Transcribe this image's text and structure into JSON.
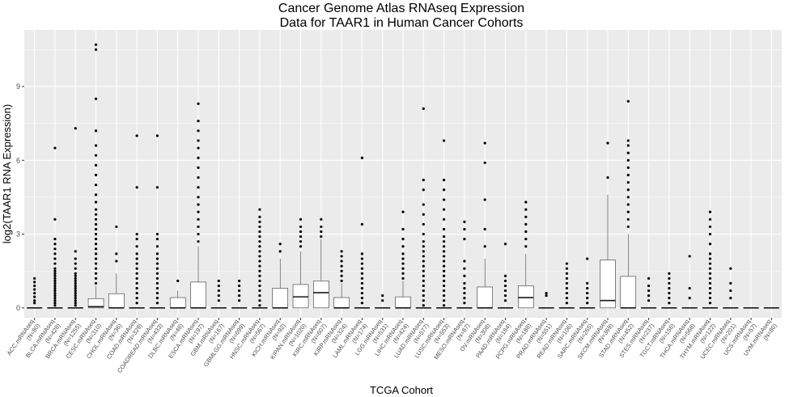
{
  "chart_data": {
    "type": "boxplot",
    "title_line1": "Cancer Genome Atlas RNAseq Expression",
    "title_line2": "Data for TAAR1 in Human Cancer Cohorts",
    "xlabel": "TCGA Cohort",
    "ylabel": "log2(TAAR1 RNA Expression)",
    "ylim": [
      -0.4,
      11.3
    ],
    "yticks": [
      0,
      3,
      6,
      9
    ],
    "grid": true,
    "categories": [
      {
        "name": "ACC.mRNAseq",
        "n": "(N=80)"
      },
      {
        "name": "BLCA.mRNAseq",
        "n": "(N=428)"
      },
      {
        "name": "BRCA.mRNAseq",
        "n": "(N=1255)"
      },
      {
        "name": "CESC.mRNAseq",
        "n": "(N=310)"
      },
      {
        "name": "CHOL.mRNAseq",
        "n": "(N=36)"
      },
      {
        "name": "COAD.mRNAseq",
        "n": "(N=329)"
      },
      {
        "name": "COADREAD.mRNAseq",
        "n": "(N=433)"
      },
      {
        "name": "DLBC.mRNAseq",
        "n": "(N=48)"
      },
      {
        "name": "ESCA.mRNAseq",
        "n": "(N=197)"
      },
      {
        "name": "GBM.mRNAseq",
        "n": "(N=167)"
      },
      {
        "name": "GBMLGG.mRNAseq",
        "n": "(N=699)"
      },
      {
        "name": "HNSC.mRNAseq",
        "n": "(N=567)"
      },
      {
        "name": "KICH.mRNAseq",
        "n": "(N=92)"
      },
      {
        "name": "KIPAN.mRNAseq",
        "n": "(N=1020)"
      },
      {
        "name": "KIRC.mRNAseq",
        "n": "(N=607)"
      },
      {
        "name": "KIRP.mRNAseq",
        "n": "(N=324)"
      },
      {
        "name": "LAML.mRNAseq",
        "n": "(N=174)"
      },
      {
        "name": "LGG.mRNAseq",
        "n": "(N=531)"
      },
      {
        "name": "LIHC.mRNAseq",
        "n": "(N=424)"
      },
      {
        "name": "LUAD.mRNAseq",
        "n": "(N=577)"
      },
      {
        "name": "LUSC.mRNAseq",
        "n": "(N=553)"
      },
      {
        "name": "MESO.mRNAseq",
        "n": "(N=87)"
      },
      {
        "name": "OV.mRNAseq",
        "n": "(N=308)"
      },
      {
        "name": "PAAD.mRNAseq",
        "n": "(N=184)"
      },
      {
        "name": "PCPG.mRNAseq",
        "n": "(N=188)"
      },
      {
        "name": "PRAD.mRNAseq",
        "n": "(N=551)"
      },
      {
        "name": "READ.mRNAseq",
        "n": "(N=106)"
      },
      {
        "name": "SARC.mRNAseq",
        "n": "(N=265)"
      },
      {
        "name": "SKCM.mRNAseq",
        "n": "(N=369)"
      },
      {
        "name": "STAD.mRNAseq",
        "n": "(N=452)"
      },
      {
        "name": "STES.mRNAseq",
        "n": "(N=237)"
      },
      {
        "name": "TGCT.mRNAseq",
        "n": "(N=156)"
      },
      {
        "name": "THCA.mRNAseq",
        "n": "(N=568)"
      },
      {
        "name": "THYM.mRNAseq",
        "n": "(N=122)"
      },
      {
        "name": "UCEC.mRNAseq",
        "n": "(N=201)"
      },
      {
        "name": "UCS.mRNAseq",
        "n": "(N=57)"
      },
      {
        "name": "UVM.mRNAseq",
        "n": "(N=80)"
      }
    ],
    "boxes": [
      {
        "q1": 0,
        "median": 0,
        "q3": 0,
        "whisker_low": 0,
        "whisker_high": 0,
        "outliers": [
          0.2,
          0.3,
          0.45,
          0.6,
          0.75,
          0.9,
          1.05,
          1.2
        ]
      },
      {
        "q1": 0,
        "median": 0,
        "q3": 0,
        "whisker_low": 0,
        "whisker_high": 0,
        "outliers": [
          0.1,
          0.2,
          0.3,
          0.4,
          0.5,
          0.6,
          0.7,
          0.8,
          0.9,
          1.0,
          1.1,
          1.2,
          1.3,
          1.4,
          1.5,
          1.6,
          1.8,
          2.0,
          2.2,
          2.4,
          2.6,
          2.8,
          3.6,
          6.5
        ]
      },
      {
        "q1": 0,
        "median": 0,
        "q3": 0,
        "whisker_low": 0,
        "whisker_high": 0,
        "outliers": [
          0.1,
          0.2,
          0.3,
          0.4,
          0.5,
          0.6,
          0.7,
          0.8,
          0.9,
          1.0,
          1.1,
          1.2,
          1.3,
          1.4,
          1.6,
          1.8,
          2.0,
          2.3,
          7.3
        ]
      },
      {
        "q1": 0,
        "median": 0.05,
        "q3": 0.38,
        "whisker_low": 0,
        "whisker_high": 0.9,
        "outliers": [
          1.0,
          1.2,
          1.4,
          1.6,
          1.8,
          2.0,
          2.2,
          2.4,
          2.6,
          2.8,
          3.0,
          3.2,
          3.4,
          3.6,
          3.8,
          4.0,
          4.3,
          4.6,
          5.0,
          5.4,
          5.8,
          6.2,
          6.6,
          7.2,
          8.5,
          10.5,
          10.7
        ]
      },
      {
        "q1": 0,
        "median": 0,
        "q3": 0.58,
        "whisker_low": 0,
        "whisker_high": 1.4,
        "outliers": [
          1.9,
          2.2,
          3.3
        ]
      },
      {
        "q1": 0,
        "median": 0,
        "q3": 0,
        "whisker_low": 0,
        "whisker_high": 0,
        "outliers": [
          0.2,
          0.4,
          0.6,
          0.8,
          1.0,
          1.2,
          1.4,
          1.6,
          1.8,
          2.0,
          2.2,
          2.5,
          2.8,
          3.0,
          4.9,
          7.0
        ]
      },
      {
        "q1": 0,
        "median": 0,
        "q3": 0,
        "whisker_low": 0,
        "whisker_high": 0,
        "outliers": [
          0.2,
          0.4,
          0.6,
          0.8,
          1.0,
          1.2,
          1.4,
          1.6,
          1.8,
          2.0,
          2.2,
          2.5,
          2.8,
          3.0,
          4.9,
          7.0
        ]
      },
      {
        "q1": 0,
        "median": 0,
        "q3": 0.42,
        "whisker_low": 0,
        "whisker_high": 0.7,
        "outliers": [
          1.1
        ]
      },
      {
        "q1": 0,
        "median": 0,
        "q3": 1.05,
        "whisker_low": 0,
        "whisker_high": 2.5,
        "outliers": [
          2.7,
          3.0,
          3.3,
          3.6,
          3.9,
          4.2,
          4.5,
          4.9,
          5.3,
          5.7,
          6.1,
          6.5,
          6.8,
          7.2,
          7.6,
          8.3
        ]
      },
      {
        "q1": 0,
        "median": 0,
        "q3": 0,
        "whisker_low": 0,
        "whisker_high": 0,
        "outliers": [
          0.3,
          0.5,
          0.7,
          0.9,
          1.1
        ]
      },
      {
        "q1": 0,
        "median": 0,
        "q3": 0,
        "whisker_low": 0,
        "whisker_high": 0,
        "outliers": [
          0.3,
          0.5,
          0.7,
          0.9,
          1.1
        ]
      },
      {
        "q1": 0,
        "median": 0,
        "q3": 0,
        "whisker_low": 0,
        "whisker_high": 0,
        "outliers": [
          0.1,
          0.3,
          0.5,
          0.7,
          0.9,
          1.1,
          1.3,
          1.5,
          1.7,
          1.9,
          2.1,
          2.3,
          2.5,
          2.7,
          2.9,
          3.1,
          3.3,
          3.5,
          3.7,
          4.0
        ]
      },
      {
        "q1": 0,
        "median": 0,
        "q3": 0.8,
        "whisker_low": 0,
        "whisker_high": 2.0,
        "outliers": [
          2.3,
          2.6
        ]
      },
      {
        "q1": 0,
        "median": 0.45,
        "q3": 0.95,
        "whisker_low": 0,
        "whisker_high": 2.3,
        "outliers": [
          2.5,
          2.7,
          2.9,
          3.1,
          3.3,
          3.6
        ]
      },
      {
        "q1": 0,
        "median": 0.62,
        "q3": 1.1,
        "whisker_low": 0,
        "whisker_high": 2.8,
        "outliers": [
          2.9,
          3.1,
          3.3,
          3.6
        ]
      },
      {
        "q1": 0,
        "median": 0,
        "q3": 0.42,
        "whisker_low": 0,
        "whisker_high": 1.0,
        "outliers": [
          1.1,
          1.3,
          1.5,
          1.7,
          1.9,
          2.1,
          2.3
        ]
      },
      {
        "q1": 0,
        "median": 0,
        "q3": 0,
        "whisker_low": 0,
        "whisker_high": 0,
        "outliers": [
          0.2,
          0.4,
          0.6,
          0.8,
          1.0,
          1.2,
          1.4,
          1.6,
          1.8,
          2.0,
          2.2,
          3.4,
          6.1
        ]
      },
      {
        "q1": 0,
        "median": 0,
        "q3": 0,
        "whisker_low": 0,
        "whisker_high": 0,
        "outliers": [
          0.3,
          0.5
        ]
      },
      {
        "q1": 0,
        "median": 0,
        "q3": 0.45,
        "whisker_low": 0,
        "whisker_high": 1.1,
        "outliers": [
          1.2,
          1.4,
          1.6,
          1.8,
          2.0,
          2.2,
          2.5,
          2.8,
          3.2,
          3.9
        ]
      },
      {
        "q1": 0,
        "median": 0,
        "q3": 0,
        "whisker_low": 0,
        "whisker_high": 0,
        "outliers": [
          0.1,
          0.3,
          0.5,
          0.7,
          0.9,
          1.1,
          1.3,
          1.5,
          1.7,
          1.9,
          2.1,
          2.3,
          2.5,
          2.7,
          3.0,
          3.4,
          3.8,
          4.2,
          4.8,
          5.2,
          8.1
        ]
      },
      {
        "q1": 0,
        "median": 0,
        "q3": 0,
        "whisker_low": 0,
        "whisker_high": 0,
        "outliers": [
          0.1,
          0.3,
          0.5,
          0.7,
          0.9,
          1.1,
          1.3,
          1.5,
          1.7,
          1.9,
          2.1,
          2.3,
          2.5,
          2.7,
          2.9,
          3.2,
          3.6,
          4.0,
          4.4,
          4.8,
          5.2,
          6.8
        ]
      },
      {
        "q1": 0,
        "median": 0,
        "q3": 0,
        "whisker_low": 0,
        "whisker_high": 0,
        "outliers": [
          0.2,
          0.4,
          0.6,
          0.8,
          1.0,
          1.3,
          1.6,
          1.9,
          2.8,
          3.2,
          3.5
        ]
      },
      {
        "q1": 0,
        "median": 0,
        "q3": 0.85,
        "whisker_low": 0,
        "whisker_high": 2.0,
        "outliers": [
          2.5,
          3.2,
          4.4,
          5.9,
          6.7
        ]
      },
      {
        "q1": 0,
        "median": 0,
        "q3": 0,
        "whisker_low": 0,
        "whisker_high": 0,
        "outliers": [
          0.3,
          0.5,
          0.7,
          0.9,
          1.1,
          1.3,
          2.6
        ]
      },
      {
        "q1": 0,
        "median": 0.42,
        "q3": 0.9,
        "whisker_low": 0,
        "whisker_high": 2.2,
        "outliers": [
          2.5,
          2.8,
          3.1,
          3.4,
          3.7,
          4.0,
          4.3
        ]
      },
      {
        "q1": 0,
        "median": 0,
        "q3": 0,
        "whisker_low": 0,
        "whisker_high": 0,
        "outliers": [
          0.5,
          0.6
        ]
      },
      {
        "q1": 0,
        "median": 0,
        "q3": 0,
        "whisker_low": 0,
        "whisker_high": 0,
        "outliers": [
          0.2,
          0.4,
          0.6,
          0.8,
          1.0,
          1.2,
          1.4,
          1.6,
          1.8
        ]
      },
      {
        "q1": 0,
        "median": 0,
        "q3": 0,
        "whisker_low": 0,
        "whisker_high": 0,
        "outliers": [
          0.2,
          0.4,
          0.6,
          0.8,
          1.0,
          2.0
        ]
      },
      {
        "q1": 0,
        "median": 0.3,
        "q3": 1.95,
        "whisker_low": 0,
        "whisker_high": 4.6,
        "outliers": [
          5.3,
          6.7
        ]
      },
      {
        "q1": 0,
        "median": 0,
        "q3": 1.28,
        "whisker_low": 0,
        "whisker_high": 3.0,
        "outliers": [
          3.3,
          3.6,
          3.9,
          4.2,
          4.5,
          4.8,
          5.1,
          5.4,
          5.7,
          6.0,
          6.3,
          6.6,
          6.8,
          8.4
        ]
      },
      {
        "q1": 0,
        "median": 0,
        "q3": 0,
        "whisker_low": 0,
        "whisker_high": 0,
        "outliers": [
          0.3,
          0.5,
          0.7,
          0.9,
          1.2
        ]
      },
      {
        "q1": 0,
        "median": 0,
        "q3": 0,
        "whisker_low": 0,
        "whisker_high": 0,
        "outliers": [
          0.2,
          0.4,
          0.6,
          0.8,
          1.0,
          1.2,
          1.4
        ]
      },
      {
        "q1": 0,
        "median": 0,
        "q3": 0,
        "whisker_low": 0,
        "whisker_high": 0,
        "outliers": [
          0.4,
          0.8,
          2.1
        ]
      },
      {
        "q1": 0,
        "median": 0,
        "q3": 0,
        "whisker_low": 0,
        "whisker_high": 0,
        "outliers": [
          0.2,
          0.4,
          0.6,
          0.8,
          1.0,
          1.2,
          1.4,
          1.6,
          1.8,
          2.0,
          2.2,
          2.6,
          3.0,
          3.3,
          3.6,
          3.9
        ]
      },
      {
        "q1": 0,
        "median": 0,
        "q3": 0,
        "whisker_low": 0,
        "whisker_high": 0,
        "outliers": [
          0.4,
          0.7,
          1.0,
          1.6
        ]
      },
      {
        "q1": 0,
        "median": 0,
        "q3": 0,
        "whisker_low": 0,
        "whisker_high": 0,
        "outliers": []
      },
      {
        "q1": 0,
        "median": 0,
        "q3": 0,
        "whisker_low": 0,
        "whisker_high": 0,
        "outliers": []
      }
    ]
  }
}
